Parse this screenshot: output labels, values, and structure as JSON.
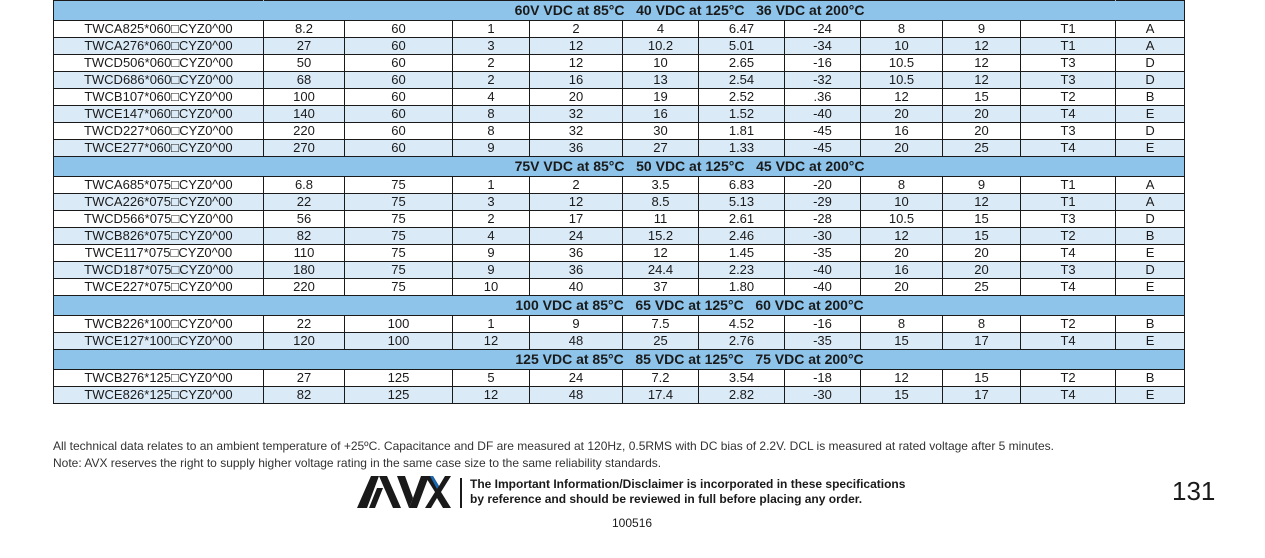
{
  "sections": [
    {
      "header": "60V VDC at 85°C   40 VDC at 125°C   36 VDC at 200°C",
      "rows": [
        [
          "TWCA825*060□CYZ0^00",
          "8.2",
          "60",
          "1",
          "2",
          "4",
          "6.47",
          "-24",
          "8",
          "9",
          "T1",
          "A"
        ],
        [
          "TWCA276*060□CYZ0^00",
          "27",
          "60",
          "3",
          "12",
          "10.2",
          "5.01",
          "-34",
          "10",
          "12",
          "T1",
          "A"
        ],
        [
          "TWCD506*060□CYZ0^00",
          "50",
          "60",
          "2",
          "12",
          "10",
          "2.65",
          "-16",
          "10.5",
          "12",
          "T3",
          "D"
        ],
        [
          "TWCD686*060□CYZ0^00",
          "68",
          "60",
          "2",
          "16",
          "13",
          "2.54",
          "-32",
          "10.5",
          "12",
          "T3",
          "D"
        ],
        [
          "TWCB107*060□CYZ0^00",
          "100",
          "60",
          "4",
          "20",
          "19",
          "2.52",
          ".36",
          "12",
          "15",
          "T2",
          "B"
        ],
        [
          "TWCE147*060□CYZ0^00",
          "140",
          "60",
          "8",
          "32",
          "16",
          "1.52",
          "-40",
          "20",
          "20",
          "T4",
          "E"
        ],
        [
          "TWCD227*060□CYZ0^00",
          "220",
          "60",
          "8",
          "32",
          "30",
          "1.81",
          "-45",
          "16",
          "20",
          "T3",
          "D"
        ],
        [
          "TWCE277*060□CYZ0^00",
          "270",
          "60",
          "9",
          "36",
          "27",
          "1.33",
          "-45",
          "20",
          "25",
          "T4",
          "E"
        ]
      ]
    },
    {
      "header": "75V VDC at 85°C   50 VDC at 125°C   45 VDC at 200°C",
      "rows": [
        [
          "TWCA685*075□CYZ0^00",
          "6.8",
          "75",
          "1",
          "2",
          "3.5",
          "6.83",
          "-20",
          "8",
          "9",
          "T1",
          "A"
        ],
        [
          "TWCA226*075□CYZ0^00",
          "22",
          "75",
          "3",
          "12",
          "8.5",
          "5.13",
          "-29",
          "10",
          "12",
          "T1",
          "A"
        ],
        [
          "TWCD566*075□CYZ0^00",
          "56",
          "75",
          "2",
          "17",
          "11",
          "2.61",
          "-28",
          "10.5",
          "15",
          "T3",
          "D"
        ],
        [
          "TWCB826*075□CYZ0^00",
          "82",
          "75",
          "4",
          "24",
          "15.2",
          "2.46",
          "-30",
          "12",
          "15",
          "T2",
          "B"
        ],
        [
          "TWCE117*075□CYZ0^00",
          "110",
          "75",
          "9",
          "36",
          "12",
          "1.45",
          "-35",
          "20",
          "20",
          "T4",
          "E"
        ],
        [
          "TWCD187*075□CYZ0^00",
          "180",
          "75",
          "9",
          "36",
          "24.4",
          "2.23",
          "-40",
          "16",
          "20",
          "T3",
          "D"
        ],
        [
          "TWCE227*075□CYZ0^00",
          "220",
          "75",
          "10",
          "40",
          "37",
          "1.80",
          "-40",
          "20",
          "25",
          "T4",
          "E"
        ]
      ]
    },
    {
      "header": "100 VDC at 85°C   65 VDC at 125°C   60 VDC at 200°C",
      "rows": [
        [
          "TWCB226*100□CYZ0^00",
          "22",
          "100",
          "1",
          "9",
          "7.5",
          "4.52",
          "-16",
          "8",
          "8",
          "T2",
          "B"
        ],
        [
          "TWCE127*100□CYZ0^00",
          "120",
          "100",
          "12",
          "48",
          "25",
          "2.76",
          "-35",
          "15",
          "17",
          "T4",
          "E"
        ]
      ]
    },
    {
      "header": "125 VDC at 85°C   85 VDC at 125°C   75 VDC at 200°C",
      "rows": [
        [
          "TWCB276*125□CYZ0^00",
          "27",
          "125",
          "5",
          "24",
          "7.2",
          "3.54",
          "-18",
          "12",
          "15",
          "T2",
          "B"
        ],
        [
          "TWCE826*125□CYZ0^00",
          "82",
          "125",
          "12",
          "48",
          "17.4",
          "2.82",
          "-30",
          "15",
          "17",
          "T4",
          "E"
        ]
      ]
    }
  ],
  "notes": {
    "line1": "All technical data relates to an ambient temperature of +25ºC. Capacitance and DF are measured at 120Hz, 0.5RMS with DC bias of 2.2V. DCL is measured at rated voltage after 5 minutes.",
    "line2": "Note: AVX reserves the right to supply higher voltage rating in the same case size to the same reliability standards."
  },
  "footer": {
    "logo_text": "AVX",
    "disclaimer_line1": "The Important Information/Disclaimer is incorporated in these specifications",
    "disclaimer_line2": "by reference and should be reviewed in full before placing any order.",
    "page_number": "131",
    "doc_code": "100516"
  },
  "colors": {
    "header_band": "#8ec4ea",
    "alt_row": "#dbeaf7",
    "logo_blue": "#1b67b0"
  }
}
